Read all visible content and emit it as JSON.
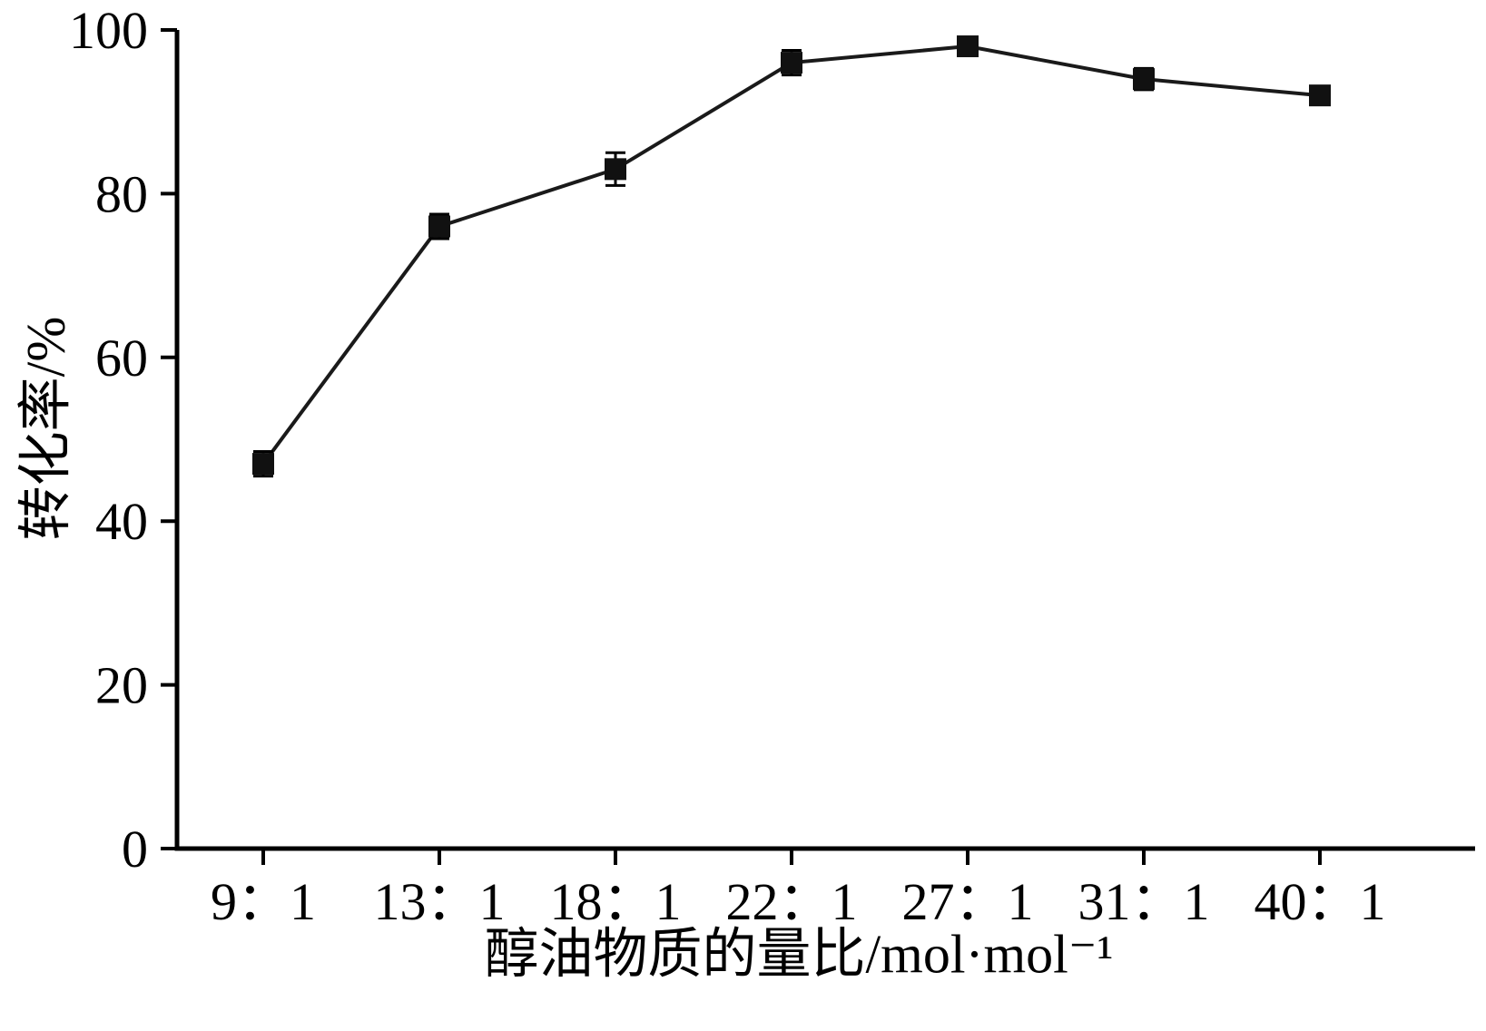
{
  "page": {
    "background_color": "#ffffff",
    "foreground_color": "#000000"
  },
  "chart_data": {
    "type": "line",
    "title": "",
    "categories": [
      "9：1",
      "13：1",
      "18：1",
      "22：1",
      "27：1",
      "31：1",
      "40：1"
    ],
    "values": [
      47,
      76,
      83,
      96,
      98,
      94,
      92
    ],
    "errors": [
      1.5,
      1.5,
      2,
      1.5,
      1,
      1.3,
      0.6
    ],
    "xlabel": "醇油物质的量比/mol·mol⁻¹",
    "ylabel": "转化率/%",
    "ylim": [
      0,
      100
    ],
    "yticks": [
      0,
      20,
      40,
      60,
      80,
      100
    ],
    "marker": "square",
    "line_color": "#1a1a1a",
    "marker_color": "#111111",
    "axis_color": "#000000",
    "grid": false,
    "legend_position": "none"
  }
}
